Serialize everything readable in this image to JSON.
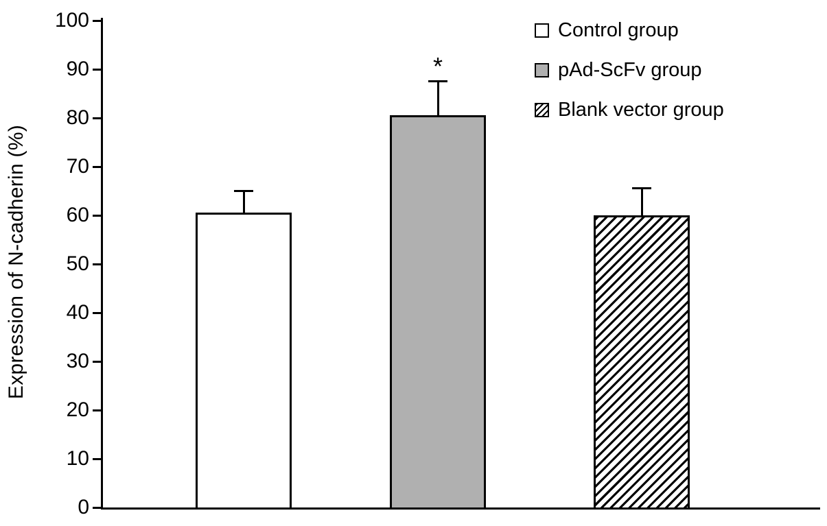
{
  "chart_data": {
    "type": "bar",
    "title": "",
    "xlabel": "",
    "ylabel": "Expression of N-cadherin (%)",
    "ylim": [
      0,
      100
    ],
    "yticks": [
      0,
      10,
      20,
      30,
      40,
      50,
      60,
      70,
      80,
      90,
      100
    ],
    "grid": false,
    "categories": [
      "Control group",
      "pAd-ScFv group",
      "Blank vector group"
    ],
    "values": [
      60.5,
      80.5,
      60
    ],
    "error_bars": [
      4.5,
      7,
      5.5
    ],
    "annotations": [
      {
        "bar_index": 1,
        "text": "*"
      }
    ],
    "legend": {
      "position": "top-right",
      "entries": [
        {
          "label": "Control group",
          "fill": "#ffffff",
          "pattern": "solid"
        },
        {
          "label": "pAd-ScFv group",
          "fill": "#b0b0b0",
          "pattern": "solid"
        },
        {
          "label": "Blank vector group",
          "fill": "#ffffff",
          "pattern": "diagonal-hatch"
        }
      ]
    },
    "colors": {
      "axis": "#000000",
      "text": "#000000",
      "bar_border": "#000000",
      "gray_fill": "#b0b0b0",
      "hatch": "#000000",
      "background": "#ffffff"
    }
  }
}
